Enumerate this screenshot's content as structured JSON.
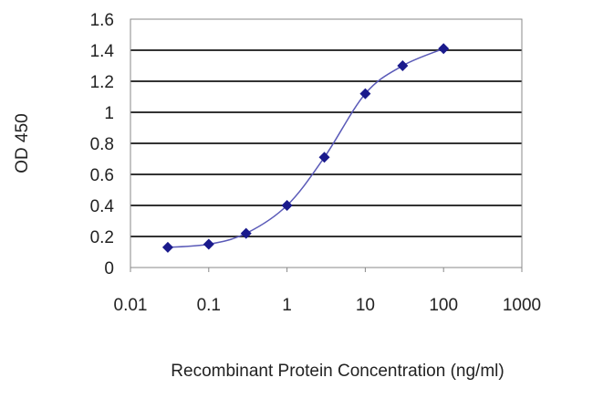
{
  "chart_data": {
    "type": "line",
    "title": "",
    "xlabel": "Recombinant Protein Concentration (ng/ml)",
    "ylabel": "OD 450",
    "x_scale": "log",
    "xlim": [
      0.01,
      1000
    ],
    "ylim": [
      0,
      1.6
    ],
    "x_ticks": [
      "0.01",
      "0.1",
      "1",
      "10",
      "100",
      "1000"
    ],
    "y_ticks": [
      "0",
      "0.2",
      "0.4",
      "0.6",
      "0.8",
      "1",
      "1.2",
      "1.4",
      "1.6"
    ],
    "grid": "horizontal",
    "legend": "none",
    "series": [
      {
        "x": [
          0.03,
          0.1,
          0.3,
          1,
          3,
          10,
          30,
          100
        ],
        "y": [
          0.13,
          0.15,
          0.22,
          0.4,
          0.71,
          1.12,
          1.3,
          1.41
        ],
        "color": "#1a1a8c",
        "marker": "diamond"
      }
    ]
  }
}
